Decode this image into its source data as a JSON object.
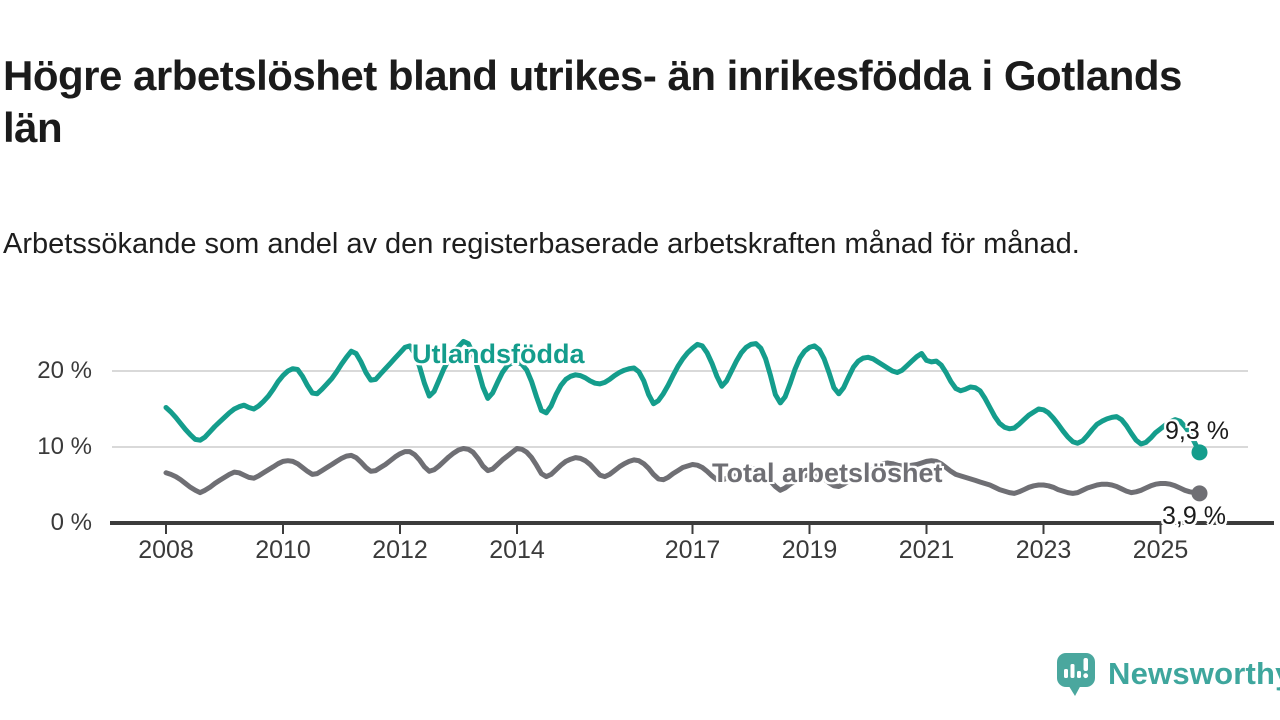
{
  "header": {
    "title": "Högre arbetslöshet bland utrikes- än inrikesfödda i Gotlands län",
    "subtitle": "Arbetssökande som andel av den registerbaserade arbetskraften månad för månad."
  },
  "chart_data": {
    "type": "line",
    "title": "Högre arbetslöshet bland utrikes- än inrikesfödda i Gotlands län",
    "x_unit": "month",
    "x_start": "2008-01",
    "x_end": "2025-09",
    "ylim": [
      0,
      25
    ],
    "grid": "horizontal",
    "grid_color": "#d9d9d9",
    "axis_color": "#3c3c3c",
    "y_axis": {
      "ticks": [
        {
          "value": 0,
          "label": "0 %"
        },
        {
          "value": 10,
          "label": "10 %"
        },
        {
          "value": 20,
          "label": "20 %"
        }
      ]
    },
    "x_axis": {
      "ticks": [
        {
          "year": 2008,
          "label": "2008"
        },
        {
          "year": 2010,
          "label": "2010"
        },
        {
          "year": 2012,
          "label": "2012"
        },
        {
          "year": 2014,
          "label": "2014"
        },
        {
          "year": 2017,
          "label": "2017"
        },
        {
          "year": 2019,
          "label": "2019"
        },
        {
          "year": 2021,
          "label": "2021"
        },
        {
          "year": 2023,
          "label": "2023"
        },
        {
          "year": 2025,
          "label": "2025"
        }
      ]
    },
    "series": [
      {
        "name": "Utlandsfödda",
        "color": "#149d8c",
        "end_label": "9,3 %",
        "end_value": 9.3,
        "values": [
          15.2,
          14.6,
          13.9,
          13.1,
          12.3,
          11.6,
          11.0,
          10.9,
          11.3,
          12.0,
          12.7,
          13.3,
          13.9,
          14.5,
          15.0,
          15.3,
          15.5,
          15.2,
          15.0,
          15.4,
          16.0,
          16.7,
          17.6,
          18.6,
          19.4,
          20.0,
          20.3,
          20.2,
          19.3,
          18.1,
          17.1,
          17.0,
          17.6,
          18.3,
          19.0,
          19.9,
          20.9,
          21.8,
          22.6,
          22.3,
          21.2,
          19.8,
          18.8,
          18.9,
          19.6,
          20.3,
          21.0,
          21.7,
          22.4,
          23.1,
          23.3,
          22.3,
          20.6,
          18.4,
          16.7,
          17.3,
          18.8,
          20.3,
          21.5,
          22.4,
          23.2,
          23.9,
          23.6,
          22.3,
          20.2,
          17.9,
          16.4,
          17.1,
          18.5,
          19.8,
          20.7,
          21.1,
          21.2,
          20.9,
          20.1,
          18.6,
          16.6,
          14.8,
          14.5,
          15.4,
          16.9,
          18.1,
          18.9,
          19.3,
          19.5,
          19.4,
          19.1,
          18.7,
          18.4,
          18.3,
          18.5,
          18.9,
          19.4,
          19.8,
          20.1,
          20.3,
          20.4,
          19.9,
          18.7,
          16.9,
          15.7,
          16.1,
          17.0,
          18.1,
          19.4,
          20.6,
          21.6,
          22.4,
          23.0,
          23.5,
          23.3,
          22.4,
          21.0,
          19.3,
          18.0,
          18.7,
          20.0,
          21.3,
          22.4,
          23.1,
          23.5,
          23.6,
          23.0,
          21.6,
          19.4,
          16.9,
          15.8,
          16.6,
          18.3,
          20.2,
          21.7,
          22.6,
          23.1,
          23.3,
          22.8,
          21.6,
          19.8,
          17.8,
          17.0,
          17.8,
          19.2,
          20.5,
          21.3,
          21.7,
          21.8,
          21.6,
          21.2,
          20.8,
          20.4,
          20.0,
          19.8,
          20.1,
          20.7,
          21.3,
          21.9,
          22.3,
          21.4,
          21.2,
          21.3,
          20.8,
          19.8,
          18.6,
          17.7,
          17.4,
          17.6,
          17.9,
          17.8,
          17.4,
          16.4,
          15.2,
          14.0,
          13.1,
          12.6,
          12.4,
          12.5,
          13.0,
          13.6,
          14.2,
          14.6,
          15.0,
          14.9,
          14.5,
          13.8,
          13.0,
          12.1,
          11.3,
          10.7,
          10.5,
          10.8,
          11.5,
          12.3,
          13.0,
          13.4,
          13.7,
          13.9,
          14.0,
          13.6,
          12.8,
          11.8,
          10.9,
          10.4,
          10.6,
          11.2,
          11.9,
          12.4,
          12.9,
          13.3,
          13.6,
          13.4,
          12.7,
          11.8,
          10.6,
          9.3
        ]
      },
      {
        "name": "Total arbetslöshet",
        "color": "#6f6f74",
        "end_label": "3,9 %",
        "end_value": 3.9,
        "values": [
          6.6,
          6.4,
          6.1,
          5.7,
          5.2,
          4.7,
          4.3,
          4.0,
          4.3,
          4.7,
          5.2,
          5.6,
          6.0,
          6.4,
          6.7,
          6.6,
          6.3,
          6.0,
          5.9,
          6.2,
          6.6,
          7.0,
          7.4,
          7.8,
          8.1,
          8.2,
          8.1,
          7.8,
          7.3,
          6.8,
          6.4,
          6.5,
          6.9,
          7.3,
          7.7,
          8.1,
          8.5,
          8.8,
          8.9,
          8.6,
          8.0,
          7.3,
          6.8,
          6.9,
          7.3,
          7.7,
          8.2,
          8.7,
          9.1,
          9.4,
          9.4,
          9.0,
          8.3,
          7.4,
          6.8,
          7.0,
          7.5,
          8.1,
          8.7,
          9.2,
          9.6,
          9.8,
          9.7,
          9.3,
          8.5,
          7.5,
          6.9,
          7.1,
          7.7,
          8.3,
          8.8,
          9.3,
          9.8,
          9.7,
          9.3,
          8.6,
          7.6,
          6.5,
          6.1,
          6.4,
          7.0,
          7.6,
          8.1,
          8.4,
          8.6,
          8.5,
          8.2,
          7.7,
          7.0,
          6.3,
          6.1,
          6.4,
          6.9,
          7.4,
          7.8,
          8.1,
          8.3,
          8.2,
          7.8,
          7.2,
          6.4,
          5.8,
          5.7,
          6.0,
          6.5,
          6.9,
          7.3,
          7.5,
          7.7,
          7.6,
          7.3,
          6.8,
          6.2,
          5.7,
          5.6,
          5.9,
          6.3,
          6.6,
          6.9,
          7.1,
          7.2,
          7.1,
          6.8,
          6.3,
          5.5,
          4.8,
          4.3,
          4.6,
          5.1,
          5.5,
          5.9,
          6.2,
          6.5,
          6.4,
          6.2,
          5.8,
          5.3,
          4.9,
          4.8,
          5.1,
          5.5,
          5.9,
          6.3,
          6.6,
          6.8,
          7.0,
          7.4,
          7.8,
          7.9,
          7.8,
          7.6,
          7.5,
          7.5,
          7.6,
          7.7,
          7.9,
          8.1,
          8.2,
          8.1,
          7.8,
          7.3,
          6.8,
          6.4,
          6.2,
          6.0,
          5.8,
          5.6,
          5.4,
          5.2,
          5.0,
          4.7,
          4.4,
          4.2,
          4.0,
          3.9,
          4.1,
          4.4,
          4.7,
          4.9,
          5.0,
          5.0,
          4.9,
          4.7,
          4.4,
          4.2,
          4.0,
          3.9,
          4.0,
          4.3,
          4.6,
          4.8,
          5.0,
          5.1,
          5.1,
          5.0,
          4.8,
          4.5,
          4.2,
          4.0,
          4.1,
          4.3,
          4.6,
          4.9,
          5.1,
          5.2,
          5.2,
          5.1,
          4.9,
          4.6,
          4.3,
          4.1,
          4.0,
          3.9
        ]
      }
    ]
  },
  "branding": {
    "logo_text": "Newsworthy",
    "logo_color": "#3ea69d",
    "icon": "bar-chart-speech-bubble"
  }
}
